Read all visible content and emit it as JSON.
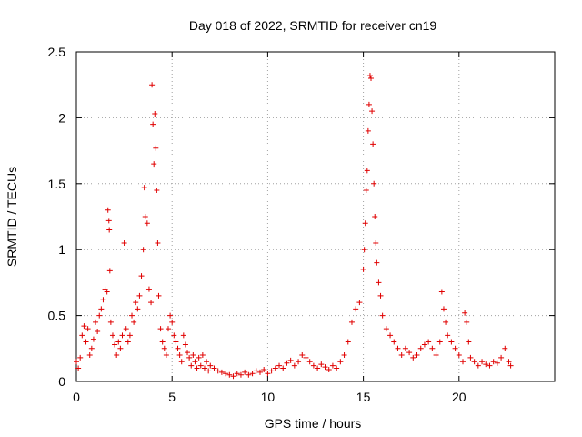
{
  "chart_data": {
    "type": "scatter",
    "title": "Day 018 of 2022, SRMTID for receiver cn19",
    "xlabel": "GPS time / hours",
    "ylabel": "SRMTID / TECUs",
    "xlim": [
      0,
      25
    ],
    "ylim": [
      0,
      2.5
    ],
    "xticks": [
      0,
      5,
      10,
      15,
      20
    ],
    "xtick_labels": [
      "0",
      "5",
      "10",
      "15",
      "20"
    ],
    "yticks": [
      0,
      0.5,
      1,
      1.5,
      2,
      2.5
    ],
    "ytick_labels": [
      "0",
      "0.5",
      "1",
      "1.5",
      "2",
      "2.5"
    ],
    "grid": true,
    "marker": "+",
    "series": [
      {
        "name": "SRMTID",
        "color": "#e00000",
        "points": [
          [
            0.0,
            0.15
          ],
          [
            0.1,
            0.1
          ],
          [
            0.2,
            0.18
          ],
          [
            0.3,
            0.35
          ],
          [
            0.4,
            0.42
          ],
          [
            0.5,
            0.3
          ],
          [
            0.6,
            0.4
          ],
          [
            0.7,
            0.2
          ],
          [
            0.8,
            0.25
          ],
          [
            0.9,
            0.32
          ],
          [
            1.0,
            0.45
          ],
          [
            1.1,
            0.38
          ],
          [
            1.2,
            0.5
          ],
          [
            1.3,
            0.55
          ],
          [
            1.4,
            0.62
          ],
          [
            1.5,
            0.7
          ],
          [
            1.6,
            0.68
          ],
          [
            1.65,
            1.3
          ],
          [
            1.7,
            1.22
          ],
          [
            1.72,
            1.15
          ],
          [
            1.75,
            0.84
          ],
          [
            1.8,
            0.45
          ],
          [
            1.9,
            0.35
          ],
          [
            2.0,
            0.28
          ],
          [
            2.1,
            0.2
          ],
          [
            2.2,
            0.3
          ],
          [
            2.3,
            0.25
          ],
          [
            2.4,
            0.35
          ],
          [
            2.5,
            1.05
          ],
          [
            2.6,
            0.4
          ],
          [
            2.7,
            0.3
          ],
          [
            2.8,
            0.35
          ],
          [
            2.9,
            0.5
          ],
          [
            3.0,
            0.45
          ],
          [
            3.1,
            0.6
          ],
          [
            3.2,
            0.55
          ],
          [
            3.3,
            0.65
          ],
          [
            3.4,
            0.8
          ],
          [
            3.5,
            1.0
          ],
          [
            3.55,
            1.47
          ],
          [
            3.6,
            1.25
          ],
          [
            3.7,
            1.2
          ],
          [
            3.8,
            0.7
          ],
          [
            3.9,
            0.6
          ],
          [
            3.95,
            2.25
          ],
          [
            4.0,
            1.95
          ],
          [
            4.05,
            1.65
          ],
          [
            4.1,
            2.03
          ],
          [
            4.15,
            1.77
          ],
          [
            4.2,
            1.45
          ],
          [
            4.25,
            1.05
          ],
          [
            4.3,
            0.65
          ],
          [
            4.4,
            0.4
          ],
          [
            4.5,
            0.3
          ],
          [
            4.6,
            0.25
          ],
          [
            4.7,
            0.2
          ],
          [
            4.8,
            0.4
          ],
          [
            4.9,
            0.5
          ],
          [
            5.0,
            0.45
          ],
          [
            5.1,
            0.35
          ],
          [
            5.2,
            0.3
          ],
          [
            5.3,
            0.25
          ],
          [
            5.4,
            0.2
          ],
          [
            5.5,
            0.15
          ],
          [
            5.6,
            0.35
          ],
          [
            5.7,
            0.28
          ],
          [
            5.8,
            0.22
          ],
          [
            5.9,
            0.18
          ],
          [
            6.0,
            0.12
          ],
          [
            6.1,
            0.2
          ],
          [
            6.2,
            0.15
          ],
          [
            6.3,
            0.1
          ],
          [
            6.4,
            0.18
          ],
          [
            6.5,
            0.12
          ],
          [
            6.6,
            0.2
          ],
          [
            6.7,
            0.1
          ],
          [
            6.8,
            0.15
          ],
          [
            6.9,
            0.08
          ],
          [
            7.0,
            0.12
          ],
          [
            7.2,
            0.1
          ],
          [
            7.4,
            0.08
          ],
          [
            7.6,
            0.07
          ],
          [
            7.8,
            0.06
          ],
          [
            8.0,
            0.05
          ],
          [
            8.2,
            0.04
          ],
          [
            8.4,
            0.06
          ],
          [
            8.6,
            0.05
          ],
          [
            8.8,
            0.07
          ],
          [
            9.0,
            0.05
          ],
          [
            9.2,
            0.06
          ],
          [
            9.4,
            0.08
          ],
          [
            9.6,
            0.07
          ],
          [
            9.8,
            0.09
          ],
          [
            10.0,
            0.06
          ],
          [
            10.2,
            0.08
          ],
          [
            10.4,
            0.1
          ],
          [
            10.6,
            0.12
          ],
          [
            10.8,
            0.1
          ],
          [
            11.0,
            0.14
          ],
          [
            11.2,
            0.16
          ],
          [
            11.4,
            0.12
          ],
          [
            11.6,
            0.15
          ],
          [
            11.8,
            0.2
          ],
          [
            12.0,
            0.18
          ],
          [
            12.2,
            0.15
          ],
          [
            12.4,
            0.12
          ],
          [
            12.6,
            0.1
          ],
          [
            12.8,
            0.13
          ],
          [
            13.0,
            0.11
          ],
          [
            13.2,
            0.09
          ],
          [
            13.4,
            0.12
          ],
          [
            13.6,
            0.1
          ],
          [
            13.8,
            0.15
          ],
          [
            14.0,
            0.2
          ],
          [
            14.2,
            0.3
          ],
          [
            14.4,
            0.45
          ],
          [
            14.6,
            0.55
          ],
          [
            14.8,
            0.6
          ],
          [
            15.0,
            0.85
          ],
          [
            15.05,
            1.0
          ],
          [
            15.1,
            1.2
          ],
          [
            15.15,
            1.45
          ],
          [
            15.2,
            1.6
          ],
          [
            15.25,
            1.9
          ],
          [
            15.3,
            2.1
          ],
          [
            15.35,
            2.32
          ],
          [
            15.4,
            2.3
          ],
          [
            15.45,
            2.05
          ],
          [
            15.5,
            1.8
          ],
          [
            15.55,
            1.5
          ],
          [
            15.6,
            1.25
          ],
          [
            15.65,
            1.05
          ],
          [
            15.7,
            0.9
          ],
          [
            15.8,
            0.75
          ],
          [
            15.9,
            0.65
          ],
          [
            16.0,
            0.5
          ],
          [
            16.2,
            0.4
          ],
          [
            16.4,
            0.35
          ],
          [
            16.6,
            0.3
          ],
          [
            16.8,
            0.25
          ],
          [
            17.0,
            0.2
          ],
          [
            17.2,
            0.25
          ],
          [
            17.4,
            0.22
          ],
          [
            17.6,
            0.18
          ],
          [
            17.8,
            0.2
          ],
          [
            18.0,
            0.25
          ],
          [
            18.2,
            0.28
          ],
          [
            18.4,
            0.3
          ],
          [
            18.6,
            0.25
          ],
          [
            18.8,
            0.2
          ],
          [
            19.0,
            0.3
          ],
          [
            19.1,
            0.68
          ],
          [
            19.2,
            0.55
          ],
          [
            19.3,
            0.45
          ],
          [
            19.4,
            0.35
          ],
          [
            19.6,
            0.3
          ],
          [
            19.8,
            0.25
          ],
          [
            20.0,
            0.2
          ],
          [
            20.2,
            0.15
          ],
          [
            20.3,
            0.52
          ],
          [
            20.4,
            0.45
          ],
          [
            20.5,
            0.3
          ],
          [
            20.6,
            0.18
          ],
          [
            20.8,
            0.15
          ],
          [
            21.0,
            0.12
          ],
          [
            21.2,
            0.15
          ],
          [
            21.4,
            0.13
          ],
          [
            21.6,
            0.12
          ],
          [
            21.8,
            0.15
          ],
          [
            22.0,
            0.14
          ],
          [
            22.2,
            0.18
          ],
          [
            22.4,
            0.25
          ],
          [
            22.6,
            0.15
          ],
          [
            22.7,
            0.12
          ]
        ]
      }
    ]
  }
}
